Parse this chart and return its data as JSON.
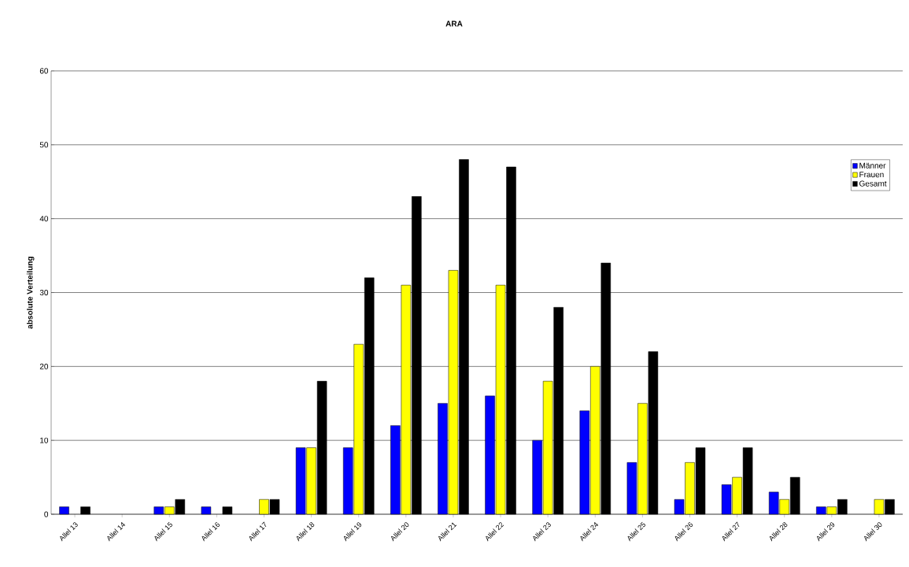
{
  "chart_data": {
    "type": "bar",
    "title": "ARA",
    "ylabel": "absolute Verteilung",
    "categories": [
      "Allel 13",
      "Allel 14",
      "Allel 15",
      "Allel 16",
      "Allel 17",
      "Allel 18",
      "Allel 19",
      "Allel 20",
      "Allel 21",
      "Allel 22",
      "Allel 23",
      "Allel 24",
      "Allel 25",
      "Allel 26",
      "Allel 27",
      "Allel 28",
      "Allel 29",
      "Allel 30"
    ],
    "series": [
      {
        "name": "Männer",
        "color": "#0000ff",
        "values": [
          1,
          null,
          1,
          1,
          null,
          9,
          9,
          12,
          15,
          16,
          10,
          14,
          7,
          2,
          4,
          3,
          1,
          null
        ]
      },
      {
        "name": "Frauen",
        "color": "#ffff00",
        "values": [
          null,
          null,
          1,
          null,
          2,
          9,
          23,
          31,
          33,
          31,
          18,
          20,
          15,
          7,
          5,
          2,
          1,
          2
        ]
      },
      {
        "name": "Gesamt",
        "color": "#000000",
        "values": [
          1,
          null,
          2,
          1,
          2,
          18,
          32,
          43,
          48,
          47,
          28,
          34,
          22,
          9,
          9,
          5,
          2,
          2
        ]
      }
    ],
    "ylim": [
      0,
      60
    ],
    "yticks": [
      0,
      10,
      20,
      30,
      40,
      50,
      60
    ],
    "grid": "y",
    "legend": "top right"
  }
}
